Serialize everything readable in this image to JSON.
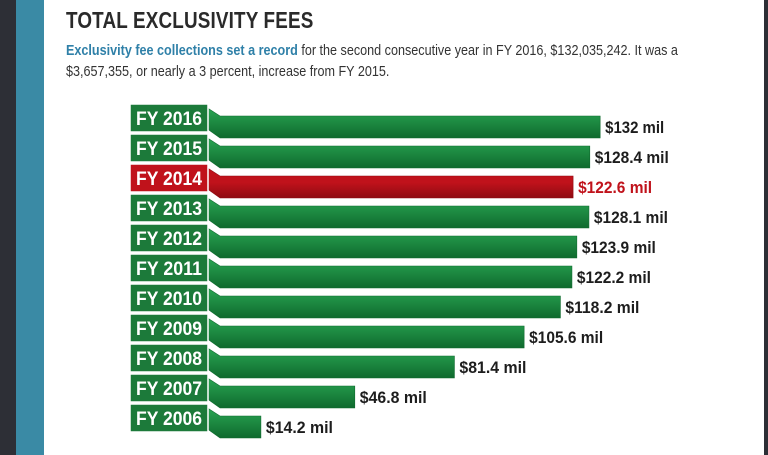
{
  "page": {
    "title": "TOTAL EXCLUSIVITY FEES",
    "intro_lead": "Exclusivity fee collections set a record",
    "intro_rest": " for the second consecutive year in FY 2016, $132,035,242. It was a $3,657,355, or nearly a 3 percent, increase from FY 2015."
  },
  "colors": {
    "bar_green": "#1e8c43",
    "bar_green_light": "#2aa654",
    "bar_green_dark": "#0f6a2e",
    "highlight_red": "#c0121b",
    "highlight_red_dark": "#8e0b12",
    "label_green": "#1c7a3a",
    "label_border": "#0e5a26",
    "value_text": "#1d1d1d",
    "highlight_text": "#c0121b",
    "sidebar_blue": "#3a8aa5"
  },
  "chart_data": {
    "type": "bar",
    "orientation": "horizontal",
    "title": "TOTAL EXCLUSIVITY FEES",
    "categories": [
      "FY 2016",
      "FY 2015",
      "FY 2014",
      "FY 2013",
      "FY 2012",
      "FY 2011",
      "FY 2010",
      "FY 2009",
      "FY 2008",
      "FY 2007",
      "FY 2006"
    ],
    "values": [
      132,
      128.4,
      122.6,
      128.1,
      123.9,
      122.2,
      118.2,
      105.6,
      81.4,
      46.8,
      14.2
    ],
    "value_labels": [
      "$132 mil",
      "$128.4 mil",
      "$122.6 mil",
      "$128.1 mil",
      "$123.9 mil",
      "$122.2 mil",
      "$118.2 mil",
      "$105.6 mil",
      "$81.4 mil",
      "$46.8 mil",
      "$14.2 mil"
    ],
    "unit": "mil",
    "highlight_category": "FY 2014",
    "grid": false,
    "legend": "none"
  }
}
